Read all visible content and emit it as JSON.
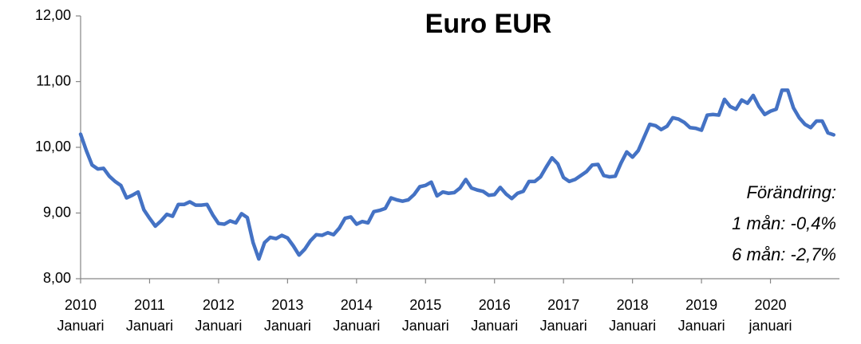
{
  "chart_data": {
    "type": "line",
    "title": "Euro EUR",
    "annotations": [
      "Förändring:",
      "1 mån: -0,4%",
      "6 mån: -2,7%"
    ],
    "categories": [
      "2010 Januari",
      null,
      null,
      null,
      null,
      null,
      null,
      null,
      null,
      null,
      null,
      null,
      "2011 Januari",
      null,
      null,
      null,
      null,
      null,
      null,
      null,
      null,
      null,
      null,
      null,
      "2012 Januari",
      null,
      null,
      null,
      null,
      null,
      null,
      null,
      null,
      null,
      null,
      null,
      "2013 Januari",
      null,
      null,
      null,
      null,
      null,
      null,
      null,
      null,
      null,
      null,
      null,
      "2014 Januari",
      null,
      null,
      null,
      null,
      null,
      null,
      null,
      null,
      null,
      null,
      null,
      "2015 Januari",
      null,
      null,
      null,
      null,
      null,
      null,
      null,
      null,
      null,
      null,
      null,
      "2016 Januari",
      null,
      null,
      null,
      null,
      null,
      null,
      null,
      null,
      null,
      null,
      null,
      "2017 Januari",
      null,
      null,
      null,
      null,
      null,
      null,
      null,
      null,
      null,
      null,
      null,
      "2018 Januari",
      null,
      null,
      null,
      null,
      null,
      null,
      null,
      null,
      null,
      null,
      null,
      "2019 Januari",
      null,
      null,
      null,
      null,
      null,
      null,
      null,
      null,
      null,
      null,
      null,
      "2020 januari",
      null,
      null,
      null,
      null,
      null,
      null,
      null,
      null,
      null,
      null,
      null
    ],
    "values": [
      10.2,
      9.95,
      9.73,
      9.67,
      9.68,
      9.56,
      9.48,
      9.42,
      9.23,
      9.27,
      9.32,
      9.05,
      8.92,
      8.8,
      8.88,
      8.98,
      8.95,
      9.13,
      9.13,
      9.17,
      9.12,
      9.12,
      9.13,
      8.97,
      8.84,
      8.83,
      8.88,
      8.85,
      8.99,
      8.93,
      8.55,
      8.3,
      8.55,
      8.63,
      8.61,
      8.66,
      8.62,
      8.5,
      8.36,
      8.45,
      8.58,
      8.67,
      8.66,
      8.7,
      8.67,
      8.77,
      8.92,
      8.94,
      8.83,
      8.87,
      8.85,
      9.02,
      9.04,
      9.07,
      9.23,
      9.2,
      9.18,
      9.2,
      9.28,
      9.4,
      9.42,
      9.47,
      9.26,
      9.32,
      9.3,
      9.31,
      9.38,
      9.51,
      9.38,
      9.35,
      9.33,
      9.27,
      9.28,
      9.39,
      9.29,
      9.22,
      9.3,
      9.33,
      9.48,
      9.48,
      9.55,
      9.7,
      9.84,
      9.75,
      9.54,
      9.48,
      9.51,
      9.57,
      9.63,
      9.73,
      9.74,
      9.57,
      9.55,
      9.56,
      9.76,
      9.93,
      9.85,
      9.95,
      10.15,
      10.35,
      10.33,
      10.27,
      10.32,
      10.45,
      10.43,
      10.38,
      10.3,
      10.29,
      10.26,
      10.49,
      10.5,
      10.49,
      10.73,
      10.62,
      10.58,
      10.72,
      10.67,
      10.79,
      10.62,
      10.5,
      10.55,
      10.58,
      10.87,
      10.87,
      10.6,
      10.45,
      10.35,
      10.3,
      10.4,
      10.4,
      10.22,
      10.19
    ],
    "color": "#4472c4",
    "ylim": [
      8,
      12
    ],
    "yticks": [
      {
        "value": 8,
        "label": "8,00"
      },
      {
        "value": 9,
        "label": "9,00"
      },
      {
        "value": 10,
        "label": "10,00"
      },
      {
        "value": 11,
        "label": "11,00"
      },
      {
        "value": 12,
        "label": "12,00"
      }
    ],
    "grid": false
  }
}
